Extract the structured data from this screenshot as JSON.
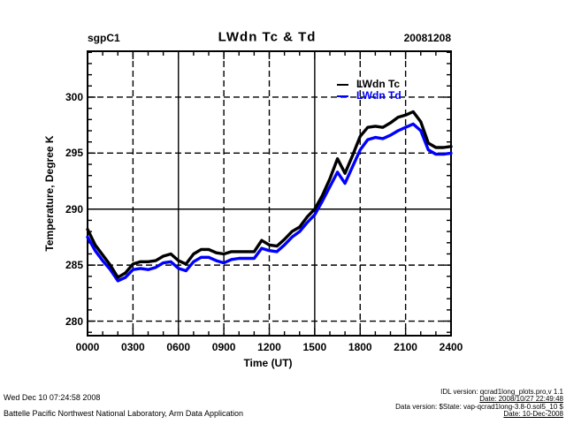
{
  "header": {
    "site": "sgpC1",
    "title": "LWdn Tc & Td",
    "date": "20081208"
  },
  "axes": {
    "y_label": "Temperature, Degree K",
    "x_label": "Time (UT)",
    "x_ticks": [
      "0000",
      "0300",
      "0600",
      "0900",
      "1200",
      "1500",
      "1800",
      "2100",
      "2400"
    ],
    "y_ticks": [
      "280",
      "285",
      "290",
      "295",
      "300"
    ]
  },
  "legend": [
    {
      "label": "LWdn Tc",
      "color": "#000000"
    },
    {
      "label": "LWdn Td",
      "color": "#0000ff"
    }
  ],
  "footer": {
    "left_line1": "Wed Dec 10 07:24:58 2008",
    "left_line2": "Battelle Pacific Northwest National Laboratory, Arm Data Application",
    "right_line1": "IDL version: qcrad1long_plots.pro,v 1.1",
    "right_line2": "Date: 2008/10/27 22:49:48",
    "right_line3": "Data version: $State: vap-qcrad1long-3.8-0.sol5_10 $",
    "right_line4": "Date: 10-Dec-2008"
  },
  "chart_data": {
    "type": "line",
    "title": "LWdn Tc & Td",
    "xlabel": "Time (UT)",
    "ylabel": "Temperature, Degree K",
    "xlim": [
      0,
      24
    ],
    "ylim": [
      278.7,
      304.1
    ],
    "x_major_ticks_hours": [
      0,
      3,
      6,
      9,
      12,
      15,
      18,
      21,
      24
    ],
    "y_major_ticks": [
      280,
      285,
      290,
      295,
      300
    ],
    "x_minor_step_hours": 1,
    "y_minor_step": 1,
    "grid": "dashed",
    "solid_gridlines": {
      "x_hours": [
        6,
        15
      ],
      "y_values": [
        290
      ]
    },
    "legend_position": "top-right-inside",
    "x_hours": [
      0,
      0.5,
      1,
      1.5,
      2,
      2.5,
      3,
      3.5,
      4,
      4.5,
      5,
      5.5,
      6,
      6.5,
      7,
      7.5,
      8,
      8.5,
      9,
      9.5,
      10,
      10.5,
      11,
      11.5,
      12,
      12.5,
      13,
      13.5,
      14,
      14.5,
      15,
      15.5,
      16,
      16.5,
      17,
      17.5,
      18,
      18.5,
      19,
      19.5,
      20,
      20.5,
      21,
      21.5,
      22,
      22.5,
      23,
      23.5,
      24
    ],
    "series": [
      {
        "name": "LWdn Tc",
        "color": "#000000",
        "values": [
          288.2,
          286.8,
          285.9,
          285.0,
          283.9,
          284.3,
          285.1,
          285.3,
          285.3,
          285.4,
          285.8,
          286.0,
          285.4,
          285.1,
          286.0,
          286.4,
          286.4,
          286.1,
          286.0,
          286.2,
          286.2,
          286.2,
          286.2,
          287.2,
          286.8,
          286.7,
          287.3,
          288.0,
          288.4,
          289.3,
          290.0,
          291.2,
          292.7,
          294.5,
          293.2,
          294.8,
          296.5,
          297.3,
          297.4,
          297.3,
          297.7,
          298.2,
          298.4,
          298.7,
          297.8,
          295.9,
          295.5,
          295.5,
          295.6
        ]
      },
      {
        "name": "LWdn Td",
        "color": "#0000ff",
        "values": [
          287.5,
          286.3,
          285.4,
          284.6,
          283.6,
          283.9,
          284.6,
          284.7,
          284.6,
          284.8,
          285.2,
          285.3,
          284.7,
          284.5,
          285.3,
          285.7,
          285.7,
          285.4,
          285.2,
          285.5,
          285.6,
          285.6,
          285.6,
          286.5,
          286.3,
          286.2,
          286.8,
          287.5,
          288.0,
          288.8,
          289.5,
          290.7,
          292.0,
          293.3,
          292.3,
          293.8,
          295.3,
          296.2,
          296.4,
          296.3,
          296.6,
          297.0,
          297.3,
          297.6,
          297.0,
          295.3,
          294.9,
          294.9,
          295.0
        ]
      }
    ]
  }
}
